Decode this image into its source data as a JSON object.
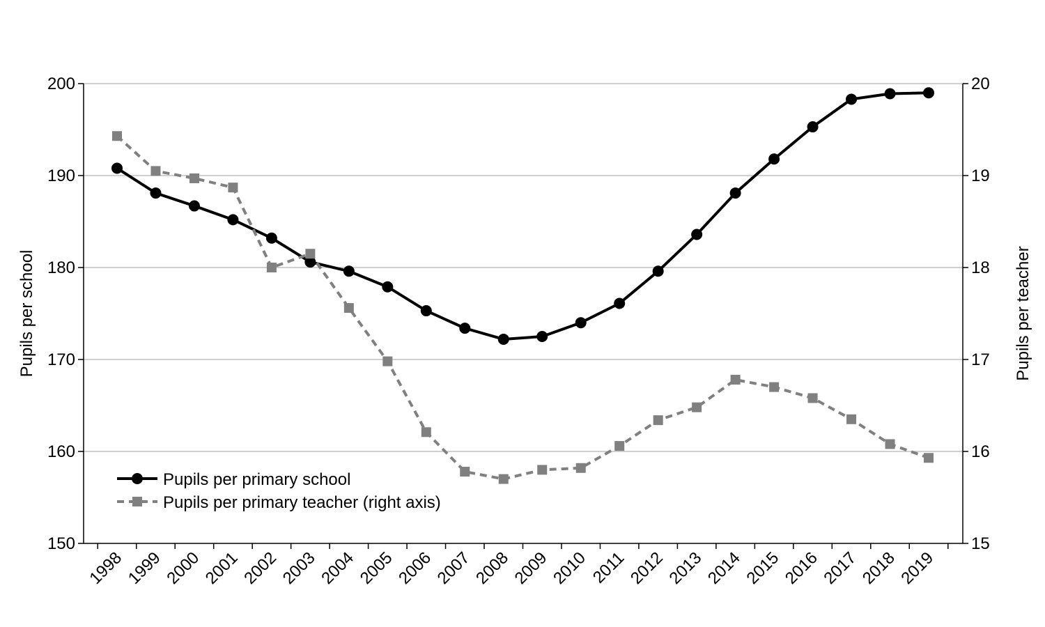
{
  "chart_data": {
    "type": "line",
    "title": "",
    "x": [
      "1998",
      "1999",
      "2000",
      "2001",
      "2002",
      "2003",
      "2004",
      "2005",
      "2006",
      "2007",
      "2008",
      "2009",
      "2010",
      "2011",
      "2012",
      "2013",
      "2014",
      "2015",
      "2016",
      "2017",
      "2018",
      "2019"
    ],
    "y_left_label": "Pupils per school",
    "y_right_label": "Pupils per teacher",
    "y_left_range": [
      150,
      200
    ],
    "y_left_ticks": [
      "150",
      "160",
      "170",
      "180",
      "190",
      "200"
    ],
    "y_right_range": [
      15,
      20
    ],
    "y_right_ticks": [
      "15",
      "16",
      "17",
      "18",
      "19",
      "20"
    ],
    "grid": true,
    "legend_position": "bottom-left",
    "series": [
      {
        "name": "Pupils per primary school",
        "axis": "left",
        "color": "#000000",
        "line_style": "solid",
        "marker": "circle",
        "values": [
          190.8,
          188.1,
          186.7,
          185.2,
          183.2,
          180.6,
          179.6,
          177.9,
          175.3,
          173.4,
          172.2,
          172.5,
          174.0,
          176.1,
          179.6,
          183.6,
          188.1,
          191.8,
          195.3,
          198.3,
          198.9,
          199.0
        ]
      },
      {
        "name": "Pupils per primary teacher (right axis)",
        "axis": "right",
        "color": "#808080",
        "line_style": "dashed",
        "marker": "square",
        "values": [
          19.43,
          19.05,
          18.97,
          18.87,
          18.0,
          18.15,
          17.56,
          16.98,
          16.21,
          15.78,
          15.7,
          15.8,
          15.82,
          16.06,
          16.34,
          16.48,
          16.78,
          16.7,
          16.58,
          16.35,
          16.08,
          15.93
        ]
      }
    ]
  }
}
